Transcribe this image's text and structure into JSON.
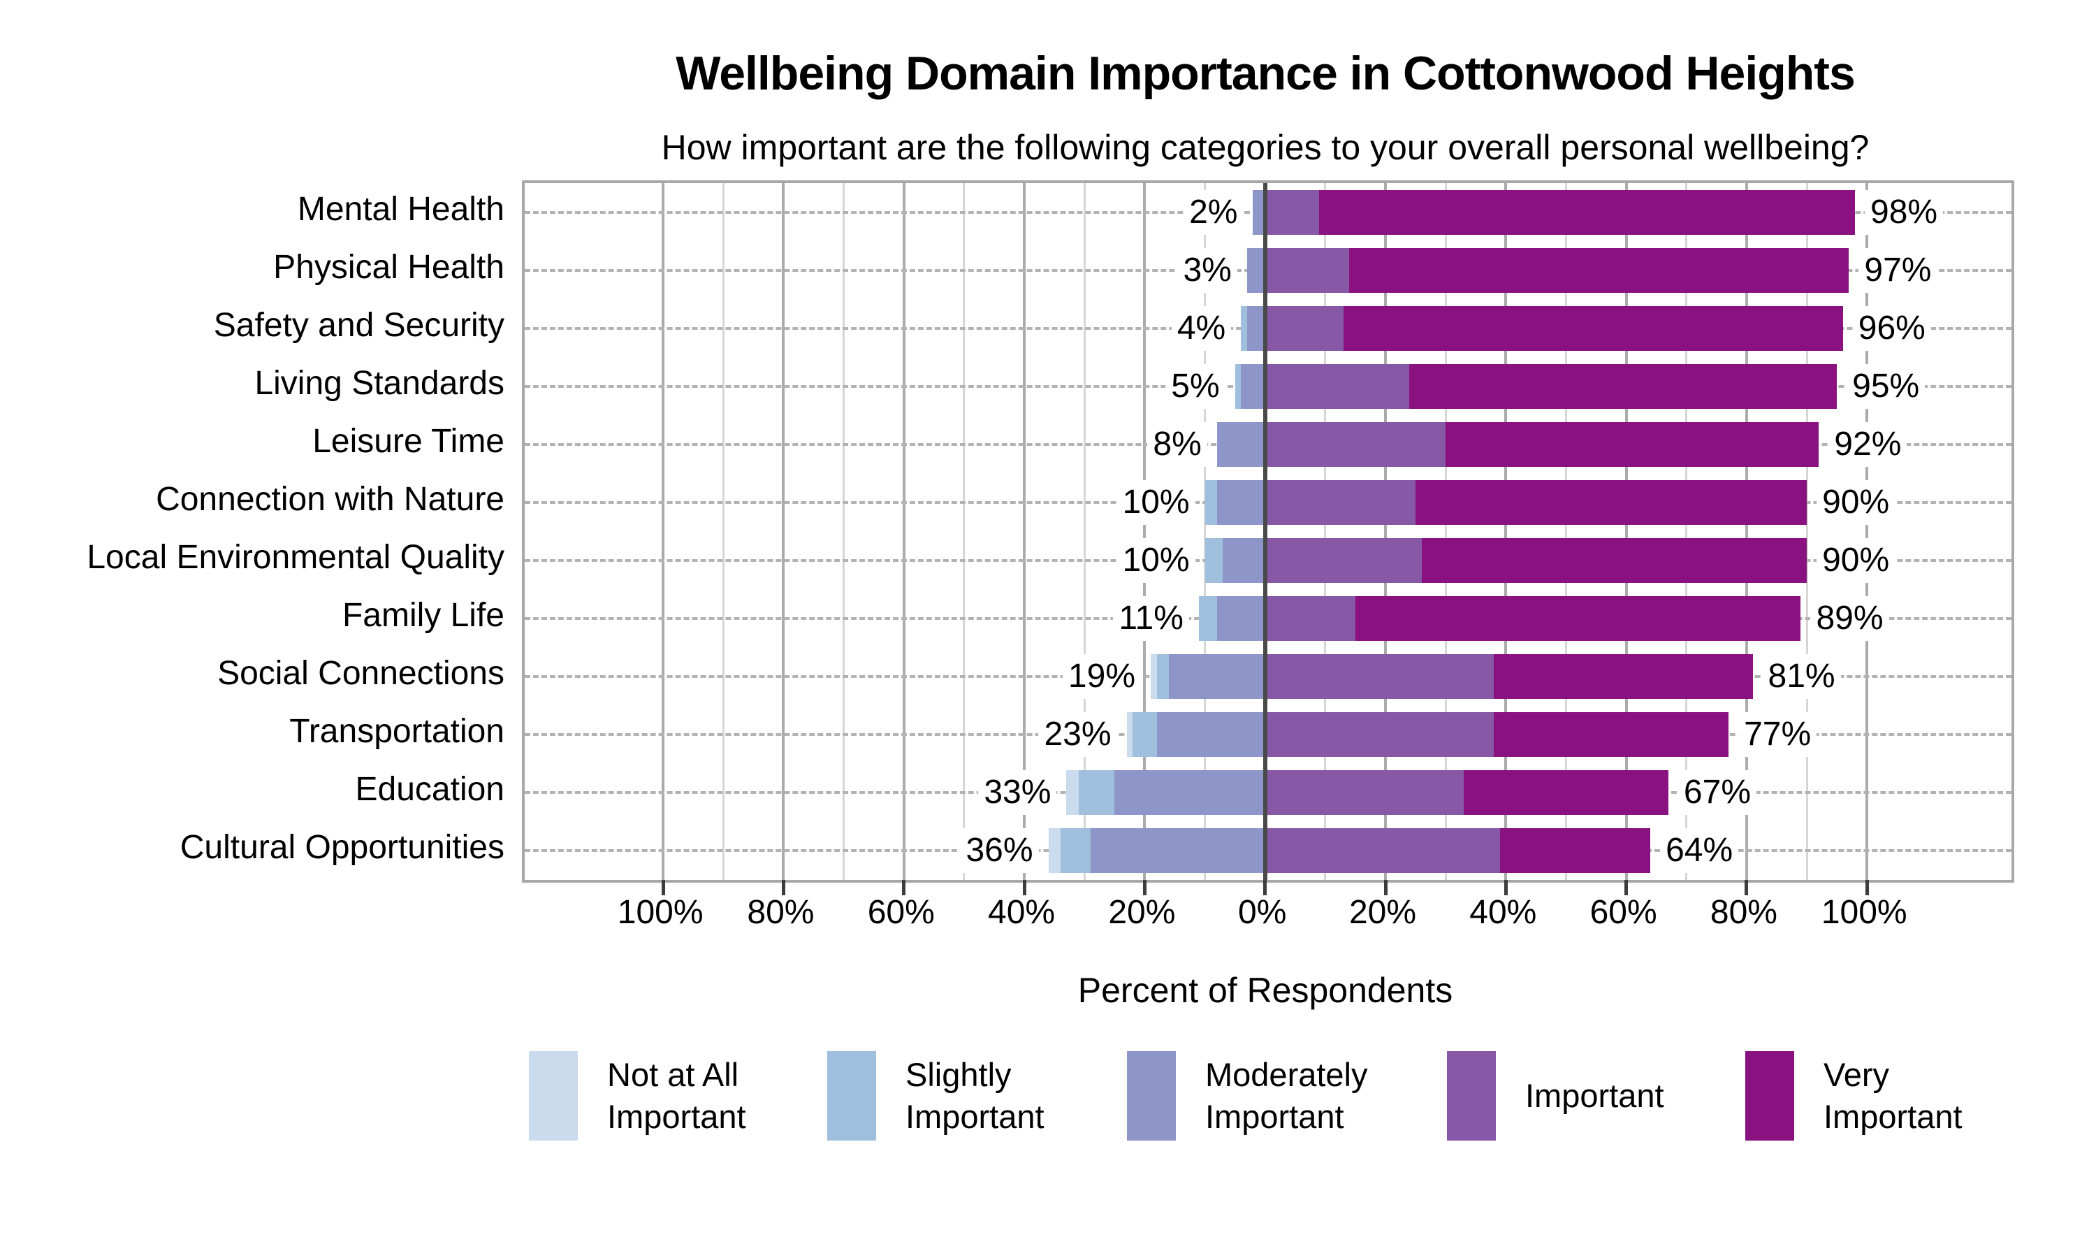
{
  "title": "Wellbeing Domain Importance in Cottonwood Heights",
  "subtitle": "How important are the following categories to your overall personal wellbeing?",
  "chart_data": {
    "type": "bar",
    "variant": "diverging-stacked-horizontal",
    "title": "Wellbeing Domain Importance in Cottonwood Heights",
    "subtitle": "How important are the following categories to your overall personal wellbeing?",
    "xlabel": "Percent of Respondents",
    "categories": [
      "Mental Health",
      "Physical Health",
      "Safety and Security",
      "Living Standards",
      "Leisure Time",
      "Connection with Nature",
      "Local Environmental Quality",
      "Family Life",
      "Social Connections",
      "Transportation",
      "Education",
      "Cultural Opportunities"
    ],
    "series": [
      {
        "name": "Not at All Important",
        "color": "#c9dbec",
        "side": "negative",
        "values": [
          0,
          0,
          0,
          0,
          0,
          0,
          0,
          0,
          1,
          1,
          2,
          2
        ]
      },
      {
        "name": "Slightly Important",
        "color": "#9fbfdd",
        "side": "negative",
        "values": [
          0,
          0,
          1,
          1,
          0,
          2,
          3,
          3,
          2,
          4,
          6,
          5
        ]
      },
      {
        "name": "Moderately Important",
        "color": "#8e95c8",
        "side": "negative",
        "values": [
          2,
          3,
          3,
          4,
          8,
          8,
          7,
          8,
          16,
          18,
          25,
          29
        ]
      },
      {
        "name": "Important",
        "color": "#8758a6",
        "side": "positive",
        "values": [
          9,
          14,
          13,
          24,
          30,
          25,
          26,
          15,
          38,
          38,
          33,
          39
        ]
      },
      {
        "name": "Very Important",
        "color": "#8a1180",
        "side": "positive",
        "values": [
          89,
          83,
          83,
          71,
          62,
          65,
          64,
          74,
          43,
          39,
          34,
          25
        ]
      }
    ],
    "negative_total_labels": [
      "2%",
      "3%",
      "4%",
      "5%",
      "8%",
      "10%",
      "10%",
      "11%",
      "19%",
      "23%",
      "33%",
      "36%"
    ],
    "positive_total_labels": [
      "98%",
      "97%",
      "96%",
      "95%",
      "92%",
      "90%",
      "90%",
      "89%",
      "81%",
      "77%",
      "67%",
      "64%"
    ],
    "x_ticks": [
      -100,
      -80,
      -60,
      -40,
      -20,
      0,
      20,
      40,
      60,
      80,
      100
    ],
    "x_tick_labels": [
      "100%",
      "80%",
      "60%",
      "40%",
      "20%",
      "0%",
      "20%",
      "40%",
      "60%",
      "80%",
      "100%"
    ],
    "x_range": [
      -123,
      124
    ],
    "gridlines": {
      "vertical_step": 10,
      "major_step": 20,
      "horizontal": "dashed-per-category"
    },
    "legend_position": "bottom"
  },
  "legend": {
    "items": [
      {
        "label": "Not at All Important",
        "color": "#c9dbec"
      },
      {
        "label": "Slightly Important",
        "color": "#9fbfdd"
      },
      {
        "label": "Moderately Important",
        "color": "#8e95c8"
      },
      {
        "label": "Important",
        "color": "#8758a6"
      },
      {
        "label": "Very Important",
        "color": "#8a1180"
      }
    ]
  },
  "colors": {
    "zero_line": "#4a4a4a",
    "grid_major": "#ababab",
    "grid_minor": "#d6d6d6",
    "row_dash": "#b3b3b3",
    "plot_border": "#a8a8a8",
    "text": "#000000",
    "background": "#ffffff"
  }
}
